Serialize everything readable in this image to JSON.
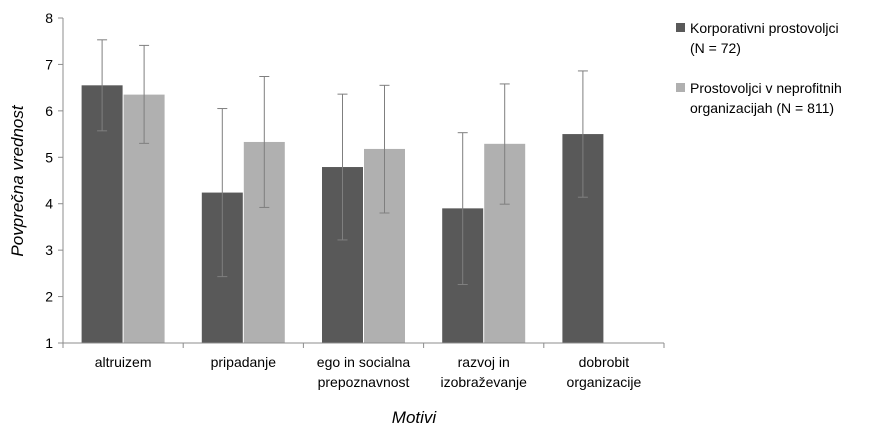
{
  "chart_data": {
    "type": "bar",
    "title": "",
    "xlabel": "Motivi",
    "ylabel": "Povprečna vrednost",
    "ylim": [
      1,
      8
    ],
    "yticks": [
      1,
      2,
      3,
      4,
      5,
      6,
      7,
      8
    ],
    "grid": false,
    "legend_position": "top-right",
    "categories": [
      [
        "altruizem"
      ],
      [
        "pripadanje"
      ],
      [
        "ego in socialna",
        "prepoznavnost"
      ],
      [
        "razvoj in",
        "izobraževanje"
      ],
      [
        "dobrobit",
        "organizacije"
      ]
    ],
    "series": [
      {
        "name": [
          "Korporativni prostovoljci",
          "(N = 72)"
        ],
        "color": "#595959",
        "values": [
          6.55,
          4.24,
          4.79,
          3.9,
          5.5
        ],
        "err_low": [
          5.57,
          2.43,
          3.22,
          2.26,
          4.14
        ],
        "err_high": [
          7.53,
          6.05,
          6.36,
          5.53,
          6.86
        ]
      },
      {
        "name": [
          "Prostovoljci v neprofitnih",
          "organizacijah (N = 811)"
        ],
        "color": "#b0b0b0",
        "values": [
          6.35,
          5.33,
          5.18,
          5.29,
          null
        ],
        "err_low": [
          5.3,
          3.92,
          3.8,
          3.99,
          null
        ],
        "err_high": [
          7.41,
          6.74,
          6.55,
          6.58,
          null
        ]
      }
    ]
  }
}
